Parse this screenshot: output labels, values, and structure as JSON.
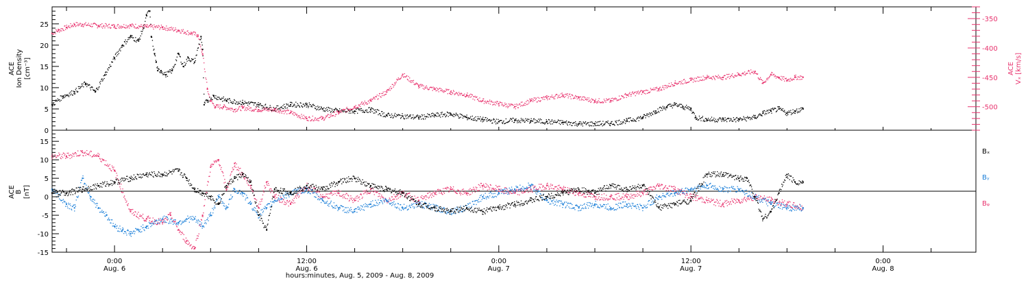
{
  "colors": {
    "black": "#000000",
    "pink": "#e8336e",
    "blue": "#1a7ed8"
  },
  "xaxis": {
    "title": "hours:minutes, Aug.  5, 2009 - Aug.  8, 2009",
    "range_hours": [
      -3.9,
      53.8
    ],
    "ticks": [
      {
        "t": 0,
        "time": "0:00",
        "date": "Aug. 6"
      },
      {
        "t": 12,
        "time": "12:00",
        "date": "Aug. 6"
      },
      {
        "t": 24,
        "time": "0:00",
        "date": "Aug. 7"
      },
      {
        "t": 36,
        "time": "12:00",
        "date": "Aug. 7"
      },
      {
        "t": 48,
        "time": "0:00",
        "date": "Aug. 8"
      }
    ]
  },
  "panel_top": {
    "ylabel_left": [
      "ACE",
      "Ion Density",
      "[cm⁻³]"
    ],
    "ylabel_right": [
      "ACE",
      "Vₓ [km/s]"
    ],
    "left_ticks": [
      "0",
      "5",
      "10",
      "15",
      "20",
      "25"
    ],
    "right_ticks": [
      "-350",
      "-400",
      "-450",
      "-500"
    ]
  },
  "panel_bottom": {
    "ylabel_left": [
      "ACE",
      "B",
      "[nT]"
    ],
    "left_ticks": [
      "15",
      "10",
      "5",
      "0",
      "-5",
      "-10",
      "-15"
    ],
    "legend": [
      "Bₓ",
      "Bᵧ",
      "Bᵩ"
    ]
  },
  "chart_data": [
    {
      "type": "scatter",
      "title": "",
      "xlabel": "hours:minutes, Aug.  5, 2009 - Aug.  8, 2009",
      "grid": false,
      "series": [
        {
          "name": "Ion Density",
          "axis": "left",
          "ylim": [
            0,
            29
          ],
          "color": "#000000",
          "x": [
            -3.9,
            -3.2,
            -2.5,
            -1.8,
            -1.2,
            -0.6,
            0,
            0.5,
            1,
            1.5,
            1.8,
            2,
            2.2,
            2.3,
            2.5,
            2.6,
            2.7,
            2.9,
            3.2,
            3.6,
            4,
            4.3,
            4.6,
            5,
            5.4,
            5.5,
            5.6,
            5.8,
            6.2,
            7,
            8,
            9,
            10,
            11,
            12,
            13,
            14,
            15,
            16,
            17,
            18,
            19,
            20,
            21,
            22,
            23,
            24,
            25,
            26,
            27,
            28,
            29,
            30,
            31,
            32,
            33,
            33.8,
            34.5,
            35,
            35.5,
            36,
            36.3,
            37,
            38,
            39,
            40,
            40.5,
            41,
            41.5,
            42,
            42.5,
            43
          ],
          "y": [
            6,
            8,
            9,
            11,
            9,
            13,
            17,
            20,
            22,
            21,
            24,
            27,
            28,
            22,
            18,
            16,
            14,
            14,
            13,
            14,
            18,
            15,
            17,
            16,
            22,
            19,
            6,
            7,
            8,
            7,
            6.5,
            6,
            5,
            6,
            6,
            5,
            4.5,
            4.5,
            4.8,
            3.5,
            3.3,
            3,
            3.5,
            3.8,
            3,
            2.5,
            2,
            2.3,
            2.2,
            2,
            1.8,
            1.5,
            1.5,
            1.6,
            2.2,
            3,
            4.5,
            5.5,
            6,
            5.5,
            5,
            3,
            2.5,
            2.5,
            2.5,
            3,
            4,
            4.5,
            5,
            4,
            4.5,
            5
          ]
        },
        {
          "name": "Vx",
          "axis": "right",
          "ylim": [
            -540,
            -330
          ],
          "color": "#e8336e",
          "x": [
            -3.9,
            -3.5,
            -3,
            -2.5,
            -2,
            -1,
            0,
            1,
            2,
            3,
            4,
            4.8,
            5.2,
            5.5,
            5.8,
            6,
            6.3,
            6.8,
            7.5,
            8,
            9,
            10,
            11,
            12,
            13,
            14,
            15,
            16,
            17,
            18,
            19,
            20,
            21,
            22,
            23,
            24,
            25,
            26,
            27,
            28,
            29,
            30,
            31,
            32,
            33,
            34,
            35,
            36,
            37,
            38,
            39,
            40,
            40.5,
            41,
            41.5,
            42,
            42.5,
            43
          ],
          "y": [
            -375,
            -370,
            -365,
            -360,
            -360,
            -362,
            -363,
            -362,
            -364,
            -365,
            -370,
            -375,
            -378,
            -410,
            -470,
            -490,
            -500,
            -500,
            -505,
            -502,
            -505,
            -505,
            -510,
            -520,
            -520,
            -510,
            -500,
            -490,
            -475,
            -445,
            -465,
            -470,
            -475,
            -480,
            -490,
            -495,
            -500,
            -490,
            -485,
            -480,
            -485,
            -490,
            -490,
            -480,
            -475,
            -470,
            -460,
            -455,
            -450,
            -450,
            -445,
            -440,
            -460,
            -445,
            -450,
            -455,
            -450,
            -450
          ]
        }
      ]
    },
    {
      "type": "scatter",
      "title": "",
      "xlabel": "hours:minutes, Aug.  5, 2009 - Aug.  8, 2009",
      "ylabel": "[nT]",
      "ylim": [
        -15,
        18
      ],
      "grid": false,
      "series": [
        {
          "name": "Bₓ",
          "color": "#000000",
          "x": [
            -3.9,
            -3,
            -2,
            -1,
            0,
            1,
            2,
            3,
            4,
            4.5,
            5,
            5.5,
            6,
            6.5,
            7,
            7.5,
            8,
            8.5,
            9,
            9.5,
            10,
            11,
            12,
            13,
            14,
            15,
            16,
            17,
            18,
            19,
            20,
            21,
            22,
            23,
            24,
            25,
            26,
            27,
            28,
            29,
            30,
            31,
            32,
            33,
            34,
            35,
            36,
            37,
            38,
            39,
            39.5,
            40,
            40.5,
            41,
            41.5,
            42,
            42.5,
            43
          ],
          "y": [
            1,
            1,
            2,
            3,
            4,
            5,
            6,
            6,
            7,
            5,
            2,
            1,
            0,
            -2,
            3,
            5,
            6,
            4,
            -5,
            -9,
            2,
            1,
            3,
            2,
            4,
            5,
            3,
            2,
            1,
            -2,
            -3,
            -4,
            -3,
            -4,
            -3,
            -2,
            -1,
            0,
            1,
            2,
            1,
            3,
            2,
            3,
            -3,
            -2,
            -1,
            6,
            6,
            5,
            5,
            0,
            -6,
            -4,
            1,
            6,
            4,
            4
          ]
        },
        {
          "name": "Bᵧ",
          "color": "#1a7ed8",
          "x": [
            -3.9,
            -3,
            -2.5,
            -2,
            -1.5,
            -1,
            -0.5,
            0,
            0.5,
            1,
            1.5,
            2,
            3,
            4,
            4.5,
            5,
            5.5,
            6,
            6.5,
            7,
            7.5,
            8,
            8.5,
            9,
            9.5,
            10,
            11,
            12,
            13,
            14,
            15,
            16,
            17,
            18,
            19,
            20,
            21,
            22,
            23,
            24,
            25,
            26,
            27,
            28,
            29,
            30,
            31,
            32,
            33,
            34,
            35,
            36,
            37,
            38,
            39,
            40,
            41,
            42,
            43
          ],
          "y": [
            2,
            -2,
            -3,
            5,
            0,
            -3,
            -5,
            -8,
            -9,
            -10,
            -9,
            -8,
            -6,
            -7,
            -6,
            -6,
            -8,
            -5,
            0,
            -3,
            2,
            1,
            -2,
            -5,
            -3,
            -1,
            1,
            2,
            -1,
            -3,
            -4,
            -2,
            -1,
            -3,
            -2,
            -3,
            -4,
            -3,
            0,
            1,
            2,
            3,
            -1,
            -2,
            -3,
            -2,
            -3,
            -2,
            -3,
            0,
            1,
            2,
            3,
            2,
            2,
            0,
            -2,
            -3,
            -3
          ]
        },
        {
          "name": "Bᵩ",
          "color": "#e8336e",
          "x": [
            -3.9,
            -3,
            -2,
            -1,
            0,
            1,
            2,
            3,
            3.5,
            4,
            4.5,
            5,
            5.5,
            6,
            6.5,
            7,
            7.5,
            8,
            8.5,
            9,
            9.5,
            10,
            11,
            12,
            13,
            14,
            15,
            16,
            17,
            18,
            19,
            20,
            21,
            22,
            23,
            24,
            25,
            26,
            27,
            28,
            29,
            30,
            31,
            32,
            33,
            34,
            35,
            36,
            37,
            38,
            39,
            40,
            41,
            42,
            43
          ],
          "y": [
            11,
            11,
            12,
            11,
            7,
            -4,
            -6,
            -7,
            -5,
            -9,
            -12,
            -14,
            -5,
            8,
            10,
            2,
            9,
            6,
            3,
            -3,
            4,
            0,
            -2,
            3,
            0,
            1,
            -1,
            2,
            -1,
            1,
            -1,
            1,
            2,
            1,
            3,
            2,
            1,
            2,
            3,
            2,
            1,
            0,
            0,
            0,
            1,
            3,
            2,
            0,
            -1,
            -2,
            -1,
            0,
            -1,
            -2,
            -3
          ]
        }
      ]
    }
  ]
}
